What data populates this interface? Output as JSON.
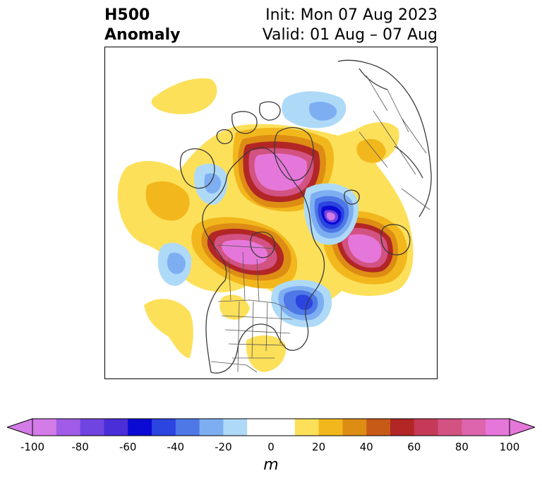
{
  "header": {
    "variable": "H500",
    "field": "Anomaly",
    "init": "Init: Mon 07 Aug 2023",
    "valid": "Valid: 01 Aug – 07 Aug"
  },
  "colorbar": {
    "min": -100,
    "max": 100,
    "step": 10,
    "extend": "both",
    "ticks": [
      "-100",
      "-80",
      "-60",
      "-40",
      "-20",
      "0",
      "20",
      "40",
      "60",
      "80",
      "100"
    ],
    "units": "m",
    "colors": [
      "#d37be7",
      "#a05ce6",
      "#7044e0",
      "#4a2ed8",
      "#0a0ad4",
      "#2c44e0",
      "#4e78e6",
      "#7eaef2",
      "#aedaf8",
      "#ffffff",
      "#ffffff",
      "#fde05a",
      "#f2b71c",
      "#dd8c14",
      "#c85a18",
      "#b22626",
      "#c43a58",
      "#d25282",
      "#dd65ad",
      "#e677da"
    ]
  },
  "anomaly_centers": [
    {
      "region": "northern-canada-arctic",
      "sign": "positive",
      "peak_m": 100
    },
    {
      "region": "western-canada",
      "sign": "positive",
      "peak_m": 100
    },
    {
      "region": "north-atlantic",
      "sign": "positive",
      "peak_m": 100
    },
    {
      "region": "greenland-sea",
      "sign": "negative",
      "peak_m": -80
    },
    {
      "region": "eastern-canada-great-lakes",
      "sign": "negative",
      "peak_m": -40
    },
    {
      "region": "northeast-pacific",
      "sign": "negative",
      "peak_m": -40
    },
    {
      "region": "alaska-bering",
      "sign": "negative",
      "peak_m": -20
    },
    {
      "region": "arctic-siberia",
      "sign": "negative",
      "peak_m": -20
    }
  ]
}
